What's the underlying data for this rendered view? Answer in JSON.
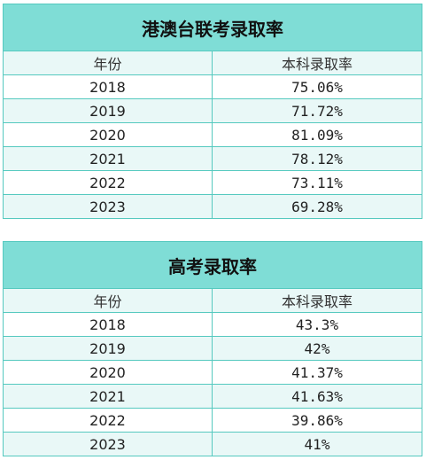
{
  "tables": [
    {
      "title": "港澳台联考录取率",
      "headers": [
        "年份",
        "本科录取率"
      ],
      "rows": [
        {
          "year": "2018",
          "rate": "75.06%"
        },
        {
          "year": "2019",
          "rate": "71.72%"
        },
        {
          "year": "2020",
          "rate": "81.09%"
        },
        {
          "year": "2021",
          "rate": "78.12%"
        },
        {
          "year": "2022",
          "rate": "73.11%"
        },
        {
          "year": "2023",
          "rate": "69.28%"
        }
      ]
    },
    {
      "title": "高考录取率",
      "headers": [
        "年份",
        "本科录取率"
      ],
      "rows": [
        {
          "year": "2018",
          "rate": "43.3%"
        },
        {
          "year": "2019",
          "rate": "42%"
        },
        {
          "year": "2020",
          "rate": "41.37%"
        },
        {
          "year": "2021",
          "rate": "41.63%"
        },
        {
          "year": "2022",
          "rate": "39.86%"
        },
        {
          "year": "2023",
          "rate": "41%"
        }
      ]
    }
  ],
  "colors": {
    "title_bg": "#7fddd6",
    "stripe_bg": "#e9f8f7",
    "border": "#55c9bf"
  }
}
